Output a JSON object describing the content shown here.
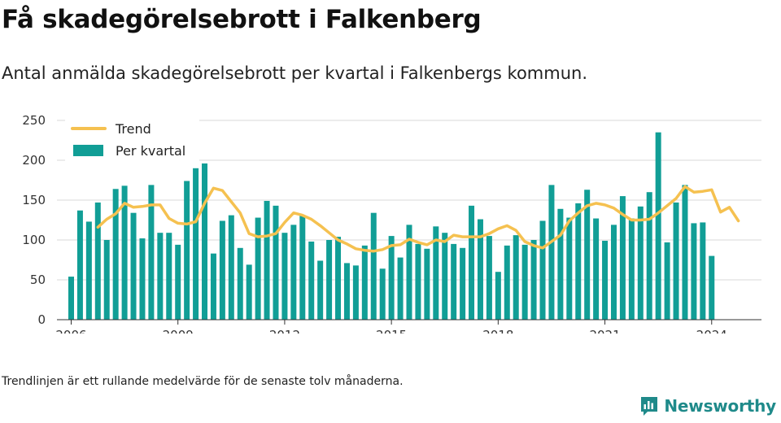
{
  "header": {
    "title": "Få skadegörelsebrott i Falkenberg",
    "subtitle": "Antal anmälda skadegörelsebrott per kvartal i Falkenbergs kommun."
  },
  "footnote": "Trendlinjen är ett rullande medelvärde för de senaste tolv månaderna.",
  "brand": {
    "name": "Newsworthy",
    "icon": "newsworthy-logo-icon",
    "color": "#1f8a8a"
  },
  "chart_data": {
    "type": "bar",
    "title": "",
    "xlabel": "",
    "ylabel": "",
    "ylim": [
      0,
      250
    ],
    "yticks": [
      0,
      50,
      100,
      150,
      200,
      250
    ],
    "xlim": [
      2005.6,
      2025.4
    ],
    "xtick_labels": [
      "2006",
      "2009",
      "2012",
      "2015",
      "2018",
      "2021",
      "2024"
    ],
    "grid": true,
    "legend_position": "top-left",
    "colors": {
      "bars": "#119e96",
      "trend": "#f5c150",
      "grid": "#d9d9d9"
    },
    "series": [
      {
        "name": "Per kvartal",
        "kind": "bar",
        "start": "2006 Q1",
        "values": [
          54,
          137,
          123,
          147,
          100,
          164,
          168,
          134,
          102,
          169,
          109,
          109,
          94,
          174,
          190,
          196,
          83,
          124,
          131,
          90,
          69,
          128,
          149,
          143,
          109,
          119,
          131,
          98,
          74,
          100,
          104,
          71,
          68,
          93,
          134,
          64,
          105,
          78,
          119,
          95,
          89,
          117,
          109,
          95,
          90,
          143,
          126,
          105,
          60,
          93,
          106,
          94,
          100,
          124,
          169,
          139,
          128,
          146,
          163,
          127,
          99,
          119,
          155,
          127,
          142,
          160,
          235,
          97,
          147,
          169,
          121,
          122,
          80
        ]
      },
      {
        "name": "Trend",
        "kind": "line",
        "start": "2006 Q4",
        "values": [
          116,
          126,
          133,
          146,
          141,
          142,
          144,
          144,
          127,
          121,
          120,
          123,
          146,
          165,
          162,
          148,
          134,
          108,
          104,
          105,
          108,
          122,
          134,
          131,
          126,
          118,
          109,
          100,
          95,
          89,
          87,
          86,
          88,
          93,
          94,
          101,
          97,
          94,
          100,
          98,
          106,
          104,
          104,
          104,
          108,
          114,
          118,
          112,
          98,
          93,
          90,
          98,
          106,
          124,
          134,
          143,
          146,
          144,
          140,
          132,
          125,
          125,
          126,
          134,
          143,
          152,
          167,
          160,
          161,
          163,
          135,
          141,
          124
        ]
      }
    ]
  }
}
